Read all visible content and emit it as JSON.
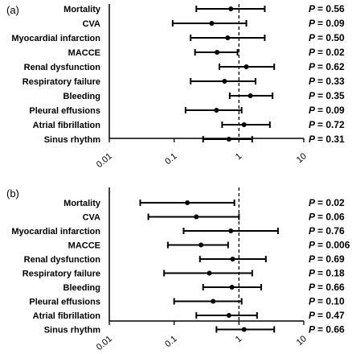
{
  "chart_data": [
    {
      "type": "forest",
      "panel_label": "(a)",
      "x_scale": "log",
      "xlim": [
        0.01,
        10
      ],
      "x_ticks": [
        "0.01",
        "0.1",
        "1",
        "10"
      ],
      "reference_line": 1,
      "rows": [
        {
          "label": "Mortality",
          "estimate": 0.75,
          "ci": [
            0.22,
            2.5
          ],
          "p_label": "P",
          "p_value": "= 0.56"
        },
        {
          "label": "CVA",
          "estimate": 0.38,
          "ci": [
            0.095,
            1.3
          ],
          "p_label": "P",
          "p_value": "= 0.09"
        },
        {
          "label": "Myocardial infarction",
          "estimate": 0.67,
          "ci": [
            0.18,
            2.5
          ],
          "p_label": "P",
          "p_value": "= 0.50"
        },
        {
          "label": "MACCE",
          "estimate": 0.46,
          "ci": [
            0.21,
            0.95
          ],
          "p_label": "P",
          "p_value": "= 0.02"
        },
        {
          "label": "Renal dysfunction",
          "estimate": 1.3,
          "ci": [
            0.5,
            3.5
          ],
          "p_label": "P",
          "p_value": "= 0.62"
        },
        {
          "label": "Respiratory failure",
          "estimate": 0.6,
          "ci": [
            0.18,
            1.8
          ],
          "p_label": "P",
          "p_value": "= 0.33"
        },
        {
          "label": "Bleeding",
          "estimate": 1.5,
          "ci": [
            0.72,
            3.3
          ],
          "p_label": "P",
          "p_value": "= 0.35"
        },
        {
          "label": "Pleural effusions",
          "estimate": 0.45,
          "ci": [
            0.15,
            1.1
          ],
          "p_label": "P",
          "p_value": "= 0.09"
        },
        {
          "label": "Atrial fibrillation",
          "estimate": 1.2,
          "ci": [
            0.55,
            3.0
          ],
          "p_label": "P",
          "p_value": "= 0.72"
        },
        {
          "label": "Sinus rhythm",
          "estimate": 0.7,
          "ci": [
            0.28,
            1.6
          ],
          "p_label": "P",
          "p_value": "= 0.31"
        }
      ]
    },
    {
      "type": "forest",
      "panel_label": "(b)",
      "x_scale": "log",
      "xlim": [
        0.01,
        10
      ],
      "x_ticks": [
        "0.01",
        "0.1",
        "1",
        "10"
      ],
      "reference_line": 1,
      "rows": [
        {
          "label": "Mortality",
          "estimate": 0.16,
          "ci": [
            0.03,
            0.85
          ],
          "p_label": "P",
          "p_value": "= 0.02"
        },
        {
          "label": "CVA",
          "estimate": 0.22,
          "ci": [
            0.04,
            1.0
          ],
          "p_label": "P",
          "p_value": "= 0.06"
        },
        {
          "label": "Myocardial infarction",
          "estimate": 0.75,
          "ci": [
            0.14,
            4.0
          ],
          "p_label": "P",
          "p_value": "= 0.76"
        },
        {
          "label": "MACCE",
          "estimate": 0.26,
          "ci": [
            0.08,
            0.68
          ],
          "p_label": "P",
          "p_value": "= 0.006"
        },
        {
          "label": "Renal dysfunction",
          "estimate": 0.8,
          "ci": [
            0.25,
            2.6
          ],
          "p_label": "P",
          "p_value": "= 0.69"
        },
        {
          "label": "Respiratory failure",
          "estimate": 0.35,
          "ci": [
            0.07,
            1.6
          ],
          "p_label": "P",
          "p_value": "= 0.18"
        },
        {
          "label": "Bleeding",
          "estimate": 0.78,
          "ci": [
            0.28,
            2.2
          ],
          "p_label": "P",
          "p_value": "= 0.66"
        },
        {
          "label": "Pleural effusions",
          "estimate": 0.4,
          "ci": [
            0.1,
            1.1
          ],
          "p_label": "P",
          "p_value": "= 0.10"
        },
        {
          "label": "Atrial fibrillation",
          "estimate": 0.7,
          "ci": [
            0.22,
            1.9
          ],
          "p_label": "P",
          "p_value": "= 0.47"
        },
        {
          "label": "Sinus rhythm",
          "estimate": 1.2,
          "ci": [
            0.45,
            3.5
          ],
          "p_label": "P",
          "p_value": "= 0.66"
        }
      ]
    }
  ]
}
